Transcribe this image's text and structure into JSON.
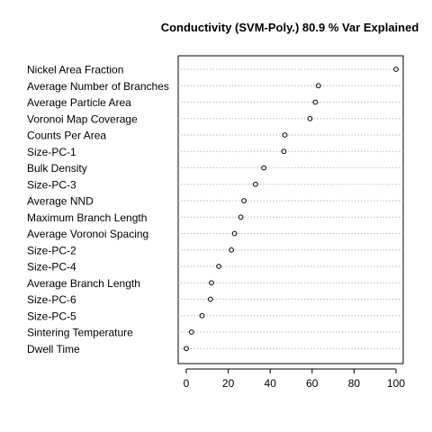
{
  "chart_data": {
    "type": "dotplot",
    "title": "Conductivity (SVM-Poly.) 80.9 % Var Explained",
    "xlabel": "",
    "ylabel": "",
    "xlim": [
      0,
      100
    ],
    "x_ticks": [
      "0",
      "20",
      "40",
      "60",
      "80",
      "100"
    ],
    "grid": "horizontal dotted lines",
    "categories": [
      "Nickel Area Fraction",
      "Average Number of Branches",
      "Average Particle Area",
      "Voronoi Map Coverage",
      "Counts Per Area",
      "Size-PC-1",
      "Bulk Density",
      "Size-PC-3",
      "Average NND",
      "Maximum Branch Length",
      "Average Voronoi Spacing",
      "Size-PC-2",
      "Size-PC-4",
      "Average Branch Length",
      "Size-PC-6",
      "Size-PC-5",
      "Sintering Temperature",
      "Dwell Time"
    ],
    "values": [
      100,
      63,
      61.5,
      59,
      47,
      46.5,
      37,
      33,
      27.5,
      26,
      23,
      21.5,
      15.5,
      12,
      11.5,
      7.5,
      2.5,
      0
    ]
  }
}
